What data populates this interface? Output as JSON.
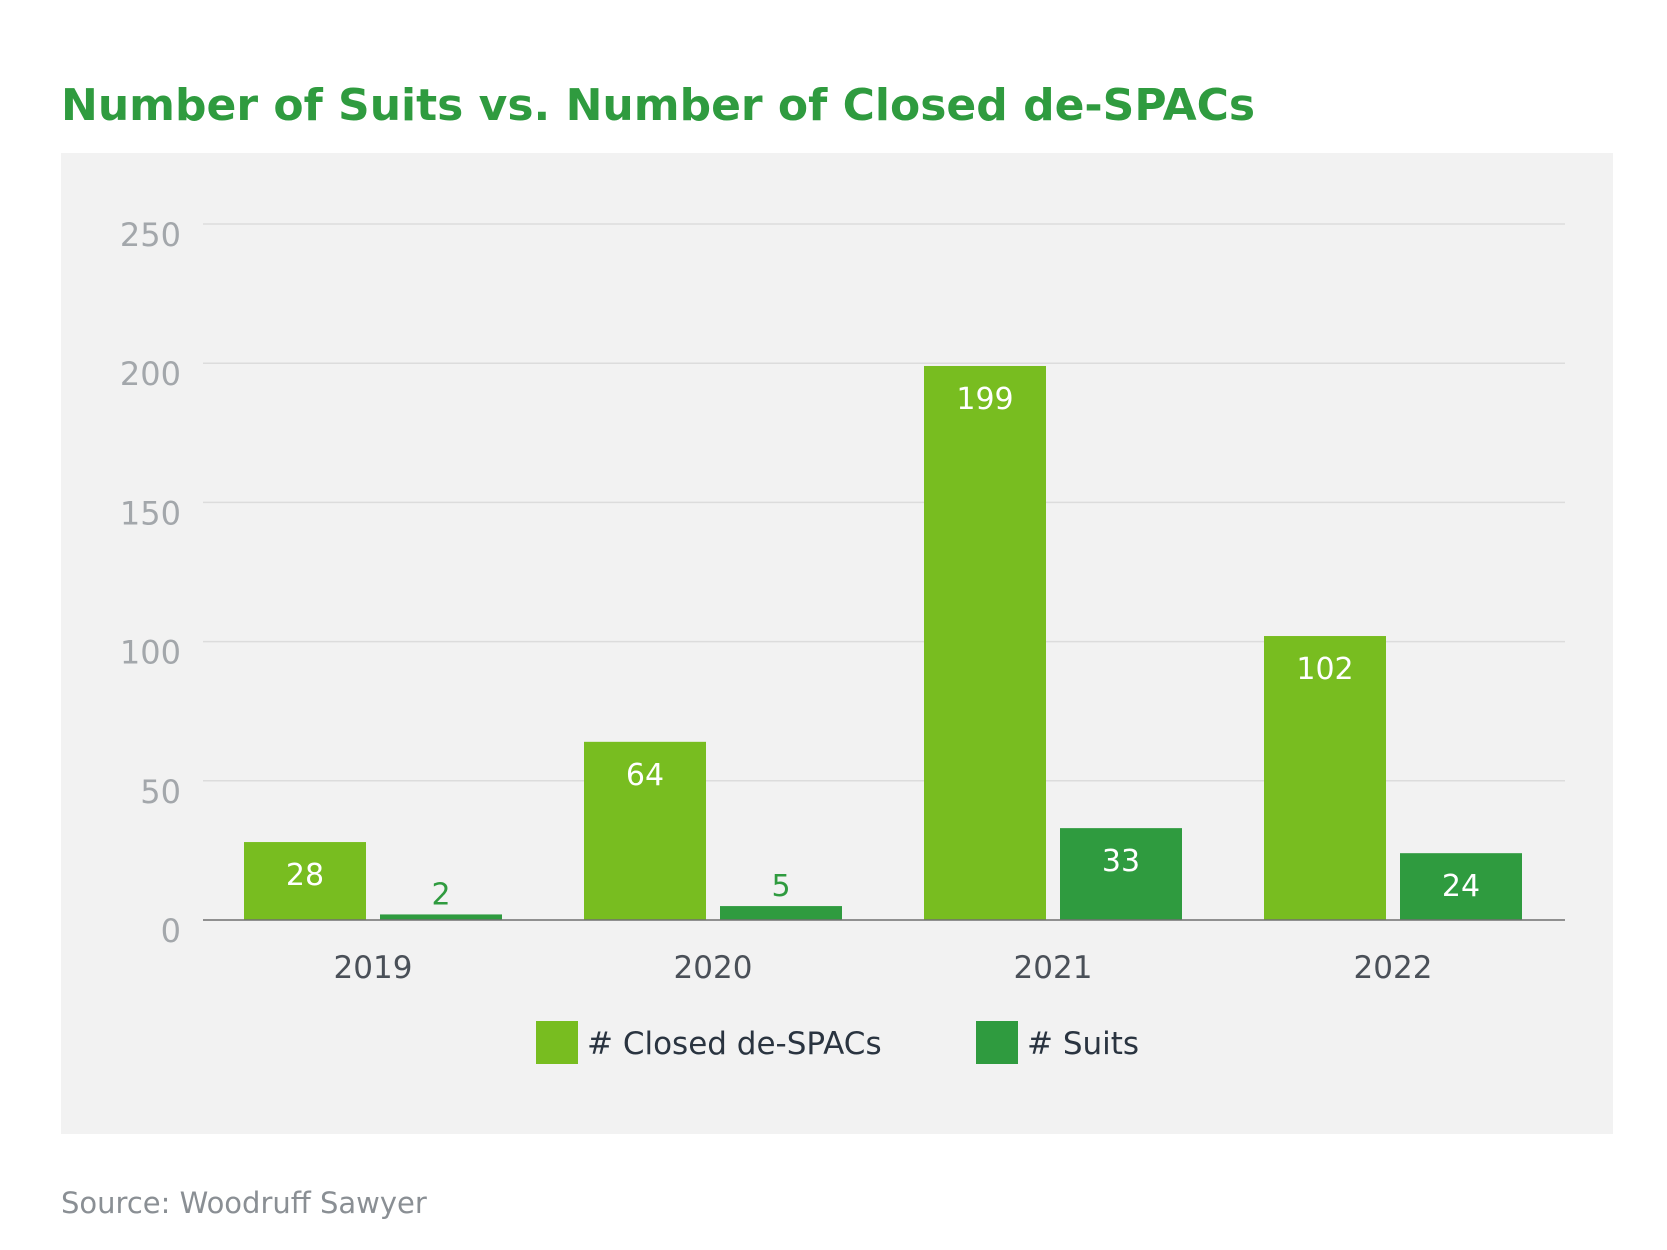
{
  "chart_data": {
    "type": "bar",
    "title": "Number of Suits vs. Number of Closed de-SPACs",
    "categories": [
      "2019",
      "2020",
      "2021",
      "2022"
    ],
    "series": [
      {
        "name": "#  Closed de-SPACs",
        "values": [
          28,
          64,
          199,
          102
        ],
        "color": "#78bd20"
      },
      {
        "name": "#  Suits",
        "values": [
          2,
          5,
          33,
          24
        ],
        "color": "#2f9b3f"
      }
    ],
    "ylim": [
      0,
      250
    ],
    "yticks": [
      0,
      50,
      100,
      150,
      200,
      250
    ],
    "grid": true,
    "legend": "bottom",
    "source": "Source: Woodruff Sawyer",
    "colors": {
      "title": "#2f9b3f",
      "panel": "#f2f2f2",
      "grid": "#dcdcdc",
      "axis": "#707070"
    }
  }
}
